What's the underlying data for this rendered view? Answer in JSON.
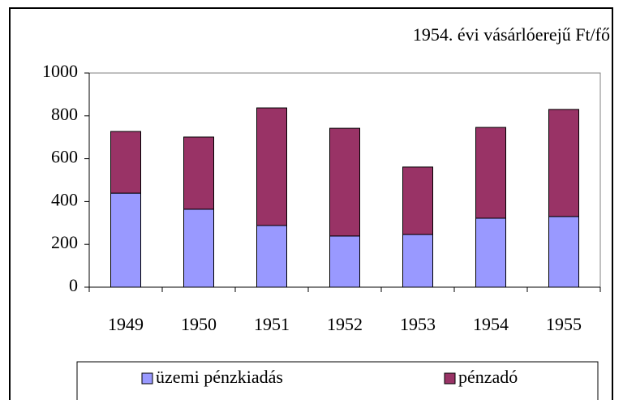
{
  "chart_data": {
    "type": "stacked_bar",
    "annotation": "1954. évi vásárlóerejű Ft/fő",
    "categories": [
      "1949",
      "1950",
      "1951",
      "1952",
      "1953",
      "1954",
      "1955"
    ],
    "series": [
      {
        "name": "üzemi pénzkiadás",
        "color": "#9999ff",
        "values": [
          439,
          364,
          288,
          239,
          246,
          322,
          330
        ]
      },
      {
        "name": "pénzadó",
        "color": "#993366",
        "values": [
          288,
          337,
          549,
          503,
          315,
          424,
          500
        ]
      }
    ],
    "ylim": [
      0,
      1000
    ],
    "yticks": [
      0,
      200,
      400,
      600,
      800,
      1000
    ],
    "grid": false
  }
}
